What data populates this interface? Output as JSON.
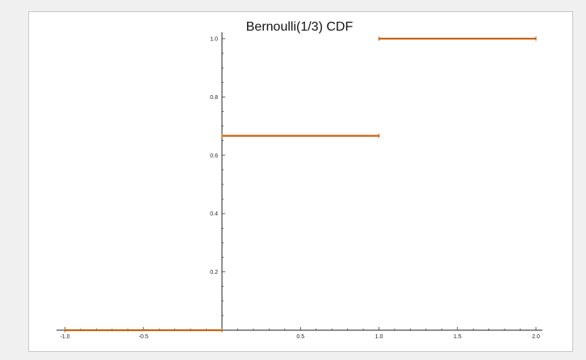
{
  "chart_data": {
    "type": "line",
    "title": "Bernoulli(1/3) CDF",
    "xlabel": "",
    "ylabel": "",
    "xlim": [
      -1.0,
      2.05
    ],
    "ylim": [
      0,
      1.05
    ],
    "x_ticks": [
      -1.0,
      -0.5,
      0.5,
      1.0,
      1.5,
      2.0
    ],
    "x_tick_labels": [
      "-1.0",
      "-0.5",
      "0.5",
      "1.0",
      "1.5",
      "2.0"
    ],
    "y_ticks": [
      0.2,
      0.4,
      0.6,
      0.8,
      1.0
    ],
    "y_tick_labels": [
      "0.2",
      "0.4",
      "0.6",
      "0.8",
      "1.0"
    ],
    "grid": false,
    "series": [
      {
        "segments": [
          {
            "x": [
              -1.0,
              0.0
            ],
            "y": [
              0,
              0
            ]
          },
          {
            "x": [
              0.0,
              1.0
            ],
            "y": [
              0.6667,
              0.6667
            ]
          },
          {
            "x": [
              1.0,
              2.0
            ],
            "y": [
              1.0,
              1.0
            ]
          }
        ]
      }
    ],
    "colors": {
      "series": "#c8620f",
      "axis": "#222222"
    }
  }
}
